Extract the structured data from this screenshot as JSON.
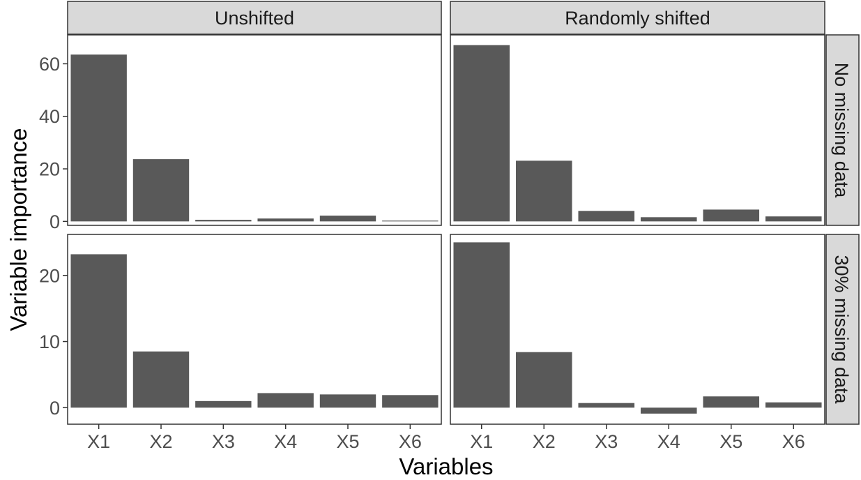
{
  "chart_data": {
    "type": "bar",
    "facets": "grid",
    "xlabel": "Variables",
    "ylabel": "Variable importance",
    "categories": [
      "X1",
      "X2",
      "X3",
      "X4",
      "X5",
      "X6"
    ],
    "col_labels": [
      "Unshifted",
      "Randomly shifted"
    ],
    "row_labels": [
      "No missing data",
      "30% missing data"
    ],
    "bar_color": "#595959",
    "grid": false,
    "rows": [
      {
        "ylim": [
          -1.5,
          71
        ],
        "yticks": [
          0,
          20,
          40,
          60
        ],
        "panels": [
          {
            "values": [
              63.5,
              23.7,
              0.6,
              1.1,
              2.2,
              0.3
            ]
          },
          {
            "values": [
              67.1,
              23.1,
              4.0,
              1.6,
              4.5,
              1.9
            ]
          }
        ]
      },
      {
        "ylim": [
          -2.5,
          26.2
        ],
        "yticks": [
          0,
          10,
          20
        ],
        "panels": [
          {
            "values": [
              23.2,
              8.5,
              1.0,
              2.2,
              2.0,
              1.9
            ]
          },
          {
            "values": [
              25.0,
              8.4,
              0.7,
              -0.9,
              1.7,
              0.8
            ]
          }
        ]
      }
    ]
  }
}
